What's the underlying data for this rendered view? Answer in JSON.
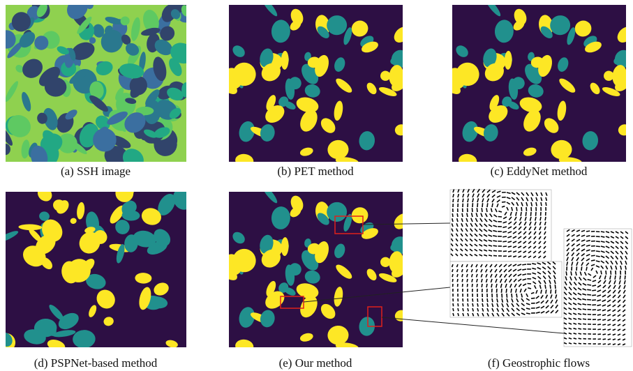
{
  "figure": {
    "captions": [
      "(a) SSH image",
      "(b) PET method",
      "(c) EddyNet method",
      "(d) PSPNet-based method",
      "(e) Our method",
      "(f) Geostrophic flows"
    ]
  }
}
